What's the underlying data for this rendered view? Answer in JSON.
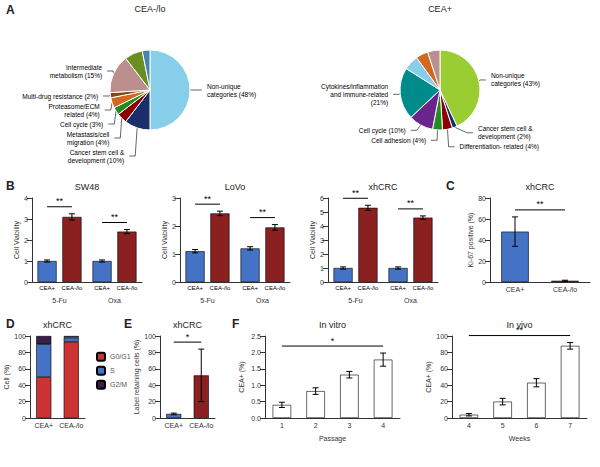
{
  "chart_data": [
    {
      "type": "pie",
      "panel": "A",
      "title": "CEA-/lo",
      "categories": [
        "Non-unique\ncategories (48%)",
        "Cancer stem cell &\ndevelopment (10%)",
        "Metastasis/cell\nmigration (4%)",
        "Cell cycle (3%)",
        "Proteasome/ECM\nrelated (4%)",
        "Multi-drug resistance (2%)",
        "Intermediate\nmetabolism (15%)",
        null,
        null
      ],
      "values": [
        48,
        10,
        4,
        3,
        4,
        2,
        15,
        7,
        3
      ],
      "colors": [
        "#87CEEB",
        "#1A2E6B",
        "#8B0000",
        "#228B22",
        "#D2691E",
        "#8B4513",
        "#BC8F8F",
        "#6B8E23",
        "#4682B4"
      ]
    },
    {
      "type": "pie",
      "title": "CEA+",
      "categories": [
        "Non-unique\ncategories (43%)",
        "Cancer stem cell &\ndevelopment (2%)",
        "Differentiation- related (4%)",
        "Cell adhesion (4%)",
        "Cell cycle (10%)",
        "Cytokines/inflammation\nand immune-related\n(21%)",
        null,
        null,
        null
      ],
      "values": [
        43,
        2,
        4,
        4,
        10,
        21,
        6,
        5,
        5
      ],
      "colors": [
        "#9ACD32",
        "#1A2E6B",
        "#8B0000",
        "#228B22",
        "#6B238E",
        "#008B8B",
        "#87CEEB",
        "#D2691E",
        "#BC8F8F"
      ]
    },
    {
      "type": "bar",
      "panel": "B",
      "title": "SW48",
      "ylabel": "Cell Viability",
      "categories": [
        "5-Fu",
        "Oxa"
      ],
      "series": [
        {
          "name": "CEA+",
          "color": "#4472C4",
          "values": [
            1.0,
            1.0
          ],
          "errors": [
            0.05,
            0.05
          ]
        },
        {
          "name": "CEA-/lo",
          "color": "#8B2020",
          "values": [
            3.1,
            2.4
          ],
          "errors": [
            0.15,
            0.1
          ]
        }
      ],
      "ylim": [
        0,
        4
      ],
      "yticks": [
        0,
        1,
        2,
        3,
        4
      ],
      "grid": false,
      "annotations": [
        "**",
        "**"
      ]
    },
    {
      "type": "bar",
      "title": "LoVo",
      "ylabel": "Cell Viability",
      "categories": [
        "5-Fu",
        "Oxa"
      ],
      "series": [
        {
          "name": "CEA+",
          "color": "#4472C4",
          "values": [
            1.1,
            1.2
          ],
          "errors": [
            0.06,
            0.06
          ]
        },
        {
          "name": "CEA-/lo",
          "color": "#8B2020",
          "values": [
            2.45,
            1.95
          ],
          "errors": [
            0.08,
            0.1
          ]
        }
      ],
      "ylim": [
        0,
        3
      ],
      "yticks": [
        0,
        1,
        2,
        3
      ],
      "grid": false,
      "annotations": [
        "**",
        "**"
      ]
    },
    {
      "type": "bar",
      "title": "xhCRC",
      "ylabel": "Cell Viability",
      "categories": [
        "5-Fu",
        "Oxa"
      ],
      "series": [
        {
          "name": "CEA+",
          "color": "#4472C4",
          "values": [
            1.0,
            1.0
          ],
          "errors": [
            0.08,
            0.08
          ]
        },
        {
          "name": "CEA-/lo",
          "color": "#8B2020",
          "values": [
            5.3,
            4.6
          ],
          "errors": [
            0.18,
            0.12
          ]
        }
      ],
      "ylim": [
        0,
        6
      ],
      "yticks": [
        0,
        1,
        2,
        3,
        4,
        5,
        6
      ],
      "grid": false,
      "annotations": [
        "**",
        "**"
      ]
    },
    {
      "type": "bar",
      "panel": "C",
      "title": "xhCRC",
      "ylabel": "Ki-67 positive (%)",
      "categories": [
        "CEA+",
        "CEA-/lo"
      ],
      "values": [
        48,
        1.2
      ],
      "errors": [
        14,
        0.5
      ],
      "colors": [
        "#4472C4",
        "#8B2020"
      ],
      "ylim": [
        0,
        80
      ],
      "yticks": [
        0,
        20,
        40,
        60,
        80
      ],
      "grid": false,
      "annotations": [
        "**"
      ]
    },
    {
      "type": "bar",
      "panel": "D",
      "title": "xhCRC",
      "ylabel": "Cell (%)",
      "categories": [
        "CEA+",
        "CEA-/lo"
      ],
      "series": [
        {
          "name": "G0/G1",
          "color": "#CC3333",
          "values": [
            50,
            93
          ]
        },
        {
          "name": "S",
          "color": "#4472C4",
          "values": [
            40,
            5
          ]
        },
        {
          "name": "G2/M",
          "color": "#3B1F47",
          "values": [
            10,
            2
          ]
        }
      ],
      "stacked": true,
      "legend": "right",
      "ylim": [
        0,
        100
      ],
      "yticks": [
        0,
        20,
        40,
        60,
        80,
        100
      ],
      "grid": false
    },
    {
      "type": "bar",
      "panel": "E",
      "title": "xhCRC",
      "ylabel": "Label retaining cells (%)",
      "categories": [
        "CEA+",
        "CEA-/lo"
      ],
      "values": [
        5,
        52
      ],
      "errors": [
        1,
        32
      ],
      "colors": [
        "#4472C4",
        "#8B2020"
      ],
      "ylim": [
        0,
        100
      ],
      "yticks": [
        0,
        20,
        40,
        60,
        80,
        100
      ],
      "grid": false,
      "annotations": [
        "*"
      ]
    },
    {
      "type": "bar",
      "panel": "F",
      "title": "In vitro",
      "xlabel": "Passage",
      "ylabel": "CEA+ (%)",
      "categories": [
        "1",
        "2",
        "3",
        "4"
      ],
      "values": [
        0.4,
        0.82,
        1.32,
        1.78
      ],
      "errors": [
        0.08,
        0.1,
        0.1,
        0.2
      ],
      "color": "#FFFFFF",
      "ylim": [
        0,
        2.5
      ],
      "yticks": [
        {
          "value": 0,
          "label": "0.0"
        },
        {
          "value": 0.5,
          "label": "0.5"
        },
        {
          "value": 1,
          "label": "1.0"
        },
        {
          "value": 1.5,
          "label": "1.5"
        },
        {
          "value": 2,
          "label": "2.0"
        },
        {
          "value": 2.5,
          "label": "2.5"
        }
      ],
      "grid": false,
      "annotations": [
        "*"
      ]
    },
    {
      "type": "bar",
      "title": "In vivo",
      "xlabel": "Weeks",
      "ylabel": "CEA+ (%)",
      "categories": [
        "4",
        "5",
        "6",
        "7"
      ],
      "values": [
        4,
        20,
        43,
        88
      ],
      "errors": [
        1.5,
        4,
        5,
        4
      ],
      "color": "#FFFFFF",
      "ylim": [
        0,
        100
      ],
      "yticks": [
        0,
        20,
        40,
        60,
        80,
        100
      ],
      "grid": false,
      "annotations": [
        "**"
      ]
    }
  ]
}
